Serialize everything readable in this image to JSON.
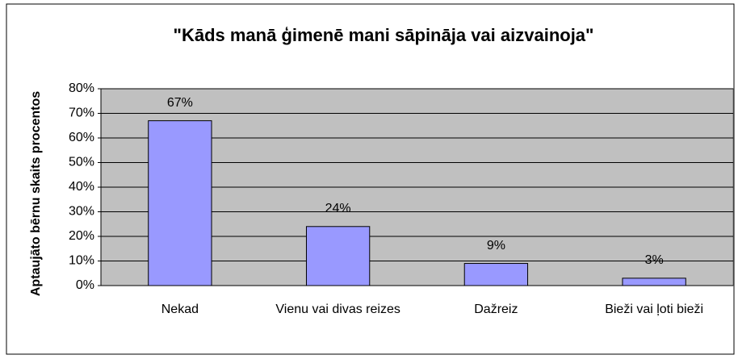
{
  "chart_data": {
    "type": "bar",
    "title": "\"Kāds manā ģimenē mani sāpināja vai aizvainoja\"",
    "y_label": "Aptaujāto bērnu skaits procentos",
    "categories": [
      "Nekad",
      "Vienu vai divas reizes",
      "Dažreiz",
      "Bieži vai ļoti bieži"
    ],
    "values": [
      67,
      24,
      9,
      3
    ],
    "value_labels": [
      "67%",
      "24%",
      "9%",
      "3%"
    ],
    "color": "#9999ff",
    "ylim": [
      0,
      80
    ],
    "yticks": [
      {
        "value": 0,
        "label": "0%"
      },
      {
        "value": 10,
        "label": "10%"
      },
      {
        "value": 20,
        "label": "20%"
      },
      {
        "value": 30,
        "label": "30%"
      },
      {
        "value": 40,
        "label": "40%"
      },
      {
        "value": 50,
        "label": "50%"
      },
      {
        "value": 60,
        "label": "60%"
      },
      {
        "value": 70,
        "label": "70%"
      },
      {
        "value": 80,
        "label": "80%"
      }
    ],
    "grid": true
  }
}
